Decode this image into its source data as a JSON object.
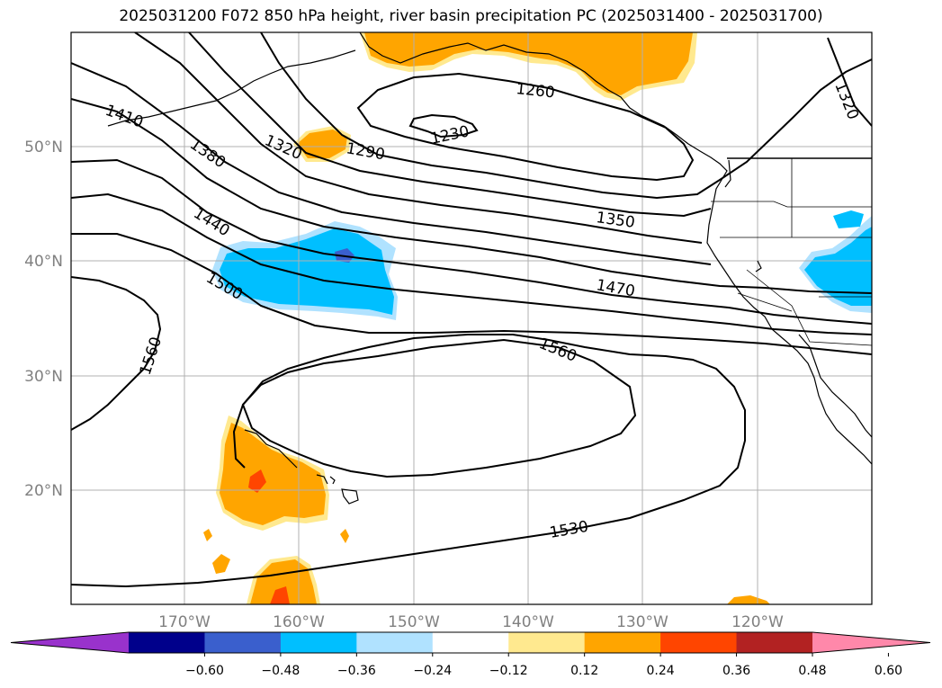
{
  "title": "2025031200 F072 850 hPa height, river basin precipitation PC (2025031400 - 2025031700)",
  "latitude_labels": [
    "50°N",
    "40°N",
    "30°N",
    "20°N"
  ],
  "longitude_labels": [
    "170°W",
    "160°W",
    "150°W",
    "140°W",
    "130°W",
    "120°W"
  ],
  "contour_labels": [
    "1230",
    "1260",
    "1290",
    "1320",
    "1320",
    "1350",
    "1380",
    "1410",
    "1440",
    "1470",
    "1500",
    "1530",
    "1560",
    "1560"
  ],
  "colorbar": {
    "tick_labels": [
      "−0.60",
      "−0.48",
      "−0.36",
      "−0.24",
      "−0.12",
      "0.12",
      "0.24",
      "0.36",
      "0.48",
      "0.60"
    ],
    "colors": [
      "#9932cc",
      "#00008b",
      "#3a5fcd",
      "#00bfff",
      "#b0e2ff",
      "#ffffff",
      "#ffe98f",
      "#ffa500",
      "#ff4500",
      "#b22222",
      "#ff88aa"
    ]
  },
  "shading_colors": {
    "light_blue": "#b0e2ff",
    "blue": "#00bfff",
    "royal_blue": "#3a5fcd",
    "light_yellow": "#ffe98f",
    "orange": "#ffa500",
    "red_orange": "#ff4500"
  }
}
